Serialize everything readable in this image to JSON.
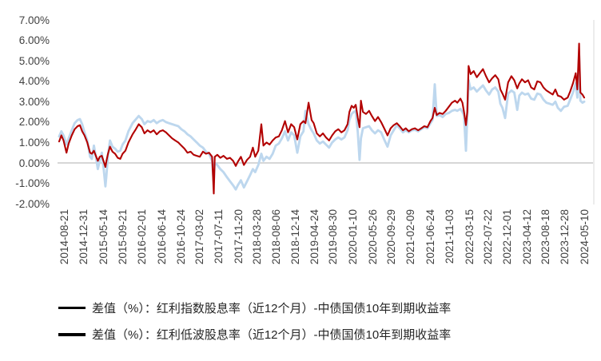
{
  "chart_data": {
    "type": "line",
    "title": "",
    "xlabel": "",
    "ylabel": "",
    "ylim": [
      -2,
      7
    ],
    "grid": "zero-line-only",
    "legend_position": "bottom-left",
    "zero_line_color": "#BFBFBF",
    "plot_border_color": "#D9D9D9",
    "axis_text_color": "#404040",
    "y_tick_labels": [
      "7.00%",
      "6.00%",
      "5.00%",
      "4.00%",
      "3.00%",
      "2.00%",
      "1.00%",
      "0.00%",
      "-1.00%",
      "-2.00%"
    ],
    "y_tick_values": [
      7,
      6,
      5,
      4,
      3,
      2,
      1,
      0,
      -1,
      -2
    ],
    "x_tick_labels": [
      "2014-08-21",
      "2014-12-31",
      "2015-05-14",
      "2015-09-21",
      "2016-02-01",
      "2016-06-14",
      "2016-10-24",
      "2017-03-02",
      "2017-07-11",
      "2017-11-20",
      "2018-03-28",
      "2018-08-06",
      "2018-12-14",
      "2019-04-24",
      "2019-08-30",
      "2020-01-10",
      "2020-05-26",
      "2020-09-29",
      "2021-02-09",
      "2021-06-24",
      "2021-11-03",
      "2022-03-15",
      "2022-07-22",
      "2022-12-01",
      "2023-04-12",
      "2023-08-18",
      "2023-12-28",
      "2024-05-10"
    ],
    "series": [
      {
        "name": "差值（%）：红利指数股息率（近12个月）-中债国债10年到期收益率",
        "color": "#B20000",
        "width": 2.1
      },
      {
        "name": "差值（%）：红利低波股息率（近12个月）-中债国债10年到期收益率",
        "color": "#BDD7EE",
        "width": 2.9
      }
    ],
    "points_format": [
      "date",
      "red_value_pct",
      "blue_value_pct"
    ],
    "points": [
      [
        "2014-08-21",
        1.05,
        1.3
      ],
      [
        "2014-09-05",
        1.35,
        1.55
      ],
      [
        "2014-09-20",
        1.1,
        1.35
      ],
      [
        "2014-10-10",
        0.5,
        0.9
      ],
      [
        "2014-10-25",
        0.95,
        1.2
      ],
      [
        "2014-11-15",
        1.35,
        1.6
      ],
      [
        "2014-12-05",
        1.65,
        1.95
      ],
      [
        "2014-12-25",
        1.8,
        2.1
      ],
      [
        "2015-01-10",
        1.85,
        2.15
      ],
      [
        "2015-01-25",
        1.55,
        1.9
      ],
      [
        "2015-02-10",
        1.35,
        1.5
      ],
      [
        "2015-03-01",
        1.0,
        1.1
      ],
      [
        "2015-03-20",
        0.5,
        0.3
      ],
      [
        "2015-04-01",
        0.45,
        0.2
      ],
      [
        "2015-04-15",
        0.6,
        0.85
      ],
      [
        "2015-05-01",
        0.3,
        0.2
      ],
      [
        "2015-05-12",
        0.1,
        -0.3
      ],
      [
        "2015-05-25",
        0.3,
        0.1
      ],
      [
        "2015-06-08",
        0.35,
        0.5
      ],
      [
        "2015-06-22",
        0.05,
        -0.35
      ],
      [
        "2015-07-03",
        -0.2,
        -1.15
      ],
      [
        "2015-07-10",
        0.1,
        -0.6
      ],
      [
        "2015-07-20",
        0.45,
        0.35
      ],
      [
        "2015-08-03",
        0.8,
        1.1
      ],
      [
        "2015-08-20",
        0.55,
        0.8
      ],
      [
        "2015-09-07",
        0.45,
        0.7
      ],
      [
        "2015-09-25",
        0.25,
        0.55
      ],
      [
        "2015-10-12",
        0.2,
        0.6
      ],
      [
        "2015-10-28",
        0.45,
        0.9
      ],
      [
        "2015-11-16",
        0.6,
        1.1
      ],
      [
        "2015-12-07",
        1.0,
        1.55
      ],
      [
        "2016-01-04",
        1.4,
        1.95
      ],
      [
        "2016-01-22",
        1.6,
        2.1
      ],
      [
        "2016-02-15",
        1.9,
        2.3
      ],
      [
        "2016-03-07",
        1.75,
        2.15
      ],
      [
        "2016-03-25",
        1.45,
        1.9
      ],
      [
        "2016-04-15",
        1.6,
        2.05
      ],
      [
        "2016-05-06",
        1.5,
        2.0
      ],
      [
        "2016-05-27",
        1.6,
        2.1
      ],
      [
        "2016-06-17",
        1.4,
        1.95
      ],
      [
        "2016-07-08",
        1.55,
        2.05
      ],
      [
        "2016-07-29",
        1.6,
        2.1
      ],
      [
        "2016-08-19",
        1.5,
        2.0
      ],
      [
        "2016-09-09",
        1.35,
        1.95
      ],
      [
        "2016-09-30",
        1.2,
        1.9
      ],
      [
        "2016-10-21",
        1.1,
        1.85
      ],
      [
        "2016-11-11",
        1.0,
        1.8
      ],
      [
        "2016-12-02",
        0.85,
        1.65
      ],
      [
        "2016-12-23",
        0.7,
        1.55
      ],
      [
        "2017-01-13",
        0.5,
        1.4
      ],
      [
        "2017-02-03",
        0.55,
        1.3
      ],
      [
        "2017-02-24",
        0.4,
        1.15
      ],
      [
        "2017-03-17",
        0.35,
        1.0
      ],
      [
        "2017-04-07",
        0.3,
        0.85
      ],
      [
        "2017-04-28",
        0.55,
        0.75
      ],
      [
        "2017-05-19",
        0.45,
        0.55
      ],
      [
        "2017-06-09",
        0.5,
        0.45
      ],
      [
        "2017-06-30",
        0.3,
        0.1
      ],
      [
        "2017-07-11",
        -1.5,
        -0.95
      ],
      [
        "2017-07-18",
        0.3,
        0.0
      ],
      [
        "2017-08-04",
        0.4,
        -0.1
      ],
      [
        "2017-08-25",
        0.25,
        -0.3
      ],
      [
        "2017-09-15",
        0.35,
        -0.45
      ],
      [
        "2017-10-09",
        0.2,
        -0.7
      ],
      [
        "2017-10-30",
        0.25,
        -0.9
      ],
      [
        "2017-11-20",
        0.1,
        -1.1
      ],
      [
        "2017-12-08",
        -0.15,
        -1.3
      ],
      [
        "2017-12-22",
        0.05,
        -1.1
      ],
      [
        "2018-01-12",
        0.3,
        -0.85
      ],
      [
        "2018-02-02",
        -0.1,
        -1.2
      ],
      [
        "2018-02-23",
        0.15,
        -0.9
      ],
      [
        "2018-03-16",
        0.3,
        -0.6
      ],
      [
        "2018-04-04",
        0.75,
        -0.3
      ],
      [
        "2018-04-20",
        0.3,
        -0.45
      ],
      [
        "2018-05-11",
        0.6,
        -0.1
      ],
      [
        "2018-06-01",
        1.9,
        0.45
      ],
      [
        "2018-06-15",
        0.85,
        0.1
      ],
      [
        "2018-07-06",
        1.0,
        0.3
      ],
      [
        "2018-07-27",
        0.9,
        0.2
      ],
      [
        "2018-08-17",
        1.1,
        0.45
      ],
      [
        "2018-09-07",
        1.25,
        0.85
      ],
      [
        "2018-09-28",
        1.3,
        0.95
      ],
      [
        "2018-10-19",
        1.6,
        1.2
      ],
      [
        "2018-11-09",
        2.05,
        1.55
      ],
      [
        "2018-11-30",
        1.5,
        1.1
      ],
      [
        "2018-12-21",
        1.9,
        1.5
      ],
      [
        "2019-01-11",
        1.75,
        1.35
      ],
      [
        "2019-02-01",
        1.15,
        0.5
      ],
      [
        "2019-02-22",
        1.9,
        1.3
      ],
      [
        "2019-03-15",
        2.05,
        1.55
      ],
      [
        "2019-03-29",
        1.95,
        2.55
      ],
      [
        "2019-04-19",
        2.95,
        1.9
      ],
      [
        "2019-05-10",
        2.1,
        1.6
      ],
      [
        "2019-05-24",
        1.95,
        1.45
      ],
      [
        "2019-06-14",
        1.45,
        1.1
      ],
      [
        "2019-07-05",
        1.3,
        0.95
      ],
      [
        "2019-07-26",
        1.45,
        1.05
      ],
      [
        "2019-08-16",
        1.25,
        0.9
      ],
      [
        "2019-09-06",
        1.1,
        0.75
      ],
      [
        "2019-09-27",
        1.35,
        1.0
      ],
      [
        "2019-10-18",
        1.55,
        1.15
      ],
      [
        "2019-11-08",
        1.65,
        1.25
      ],
      [
        "2019-11-29",
        1.5,
        1.15
      ],
      [
        "2019-12-20",
        1.6,
        1.25
      ],
      [
        "2020-01-10",
        1.9,
        1.6
      ],
      [
        "2020-01-23",
        2.5,
        2.1
      ],
      [
        "2020-02-07",
        2.8,
        2.4
      ],
      [
        "2020-02-21",
        2.7,
        2.5
      ],
      [
        "2020-03-06",
        2.85,
        2.55
      ],
      [
        "2020-03-20",
        2.2,
        1.5
      ],
      [
        "2020-04-01",
        1.75,
        0.15
      ],
      [
        "2020-04-10",
        3.05,
        1.2
      ],
      [
        "2020-04-24",
        2.5,
        1.7
      ],
      [
        "2020-05-15",
        2.4,
        1.75
      ],
      [
        "2020-06-05",
        2.55,
        1.8
      ],
      [
        "2020-06-24",
        2.3,
        1.6
      ],
      [
        "2020-07-15",
        2.05,
        1.45
      ],
      [
        "2020-08-05",
        2.25,
        1.6
      ],
      [
        "2020-08-26",
        2.0,
        1.5
      ],
      [
        "2020-09-16",
        1.7,
        1.15
      ],
      [
        "2020-10-09",
        1.35,
        0.8
      ],
      [
        "2020-10-30",
        1.7,
        1.35
      ],
      [
        "2020-11-20",
        1.85,
        1.6
      ],
      [
        "2020-12-11",
        1.95,
        1.85
      ],
      [
        "2020-12-31",
        1.8,
        1.7
      ],
      [
        "2021-01-22",
        1.6,
        1.5
      ],
      [
        "2021-02-10",
        1.7,
        1.6
      ],
      [
        "2021-03-03",
        1.55,
        1.5
      ],
      [
        "2021-03-24",
        1.65,
        1.6
      ],
      [
        "2021-04-14",
        1.7,
        1.62
      ],
      [
        "2021-05-06",
        1.6,
        1.55
      ],
      [
        "2021-05-27",
        1.7,
        1.65
      ],
      [
        "2021-06-17",
        1.8,
        1.75
      ],
      [
        "2021-07-08",
        1.75,
        1.7
      ],
      [
        "2021-07-29",
        2.05,
        1.95
      ],
      [
        "2021-08-12",
        2.2,
        2.1
      ],
      [
        "2021-08-27",
        2.7,
        3.85
      ],
      [
        "2021-09-09",
        2.35,
        2.3
      ],
      [
        "2021-09-29",
        2.45,
        2.35
      ],
      [
        "2021-10-20",
        2.4,
        2.25
      ],
      [
        "2021-11-10",
        2.55,
        2.4
      ],
      [
        "2021-12-01",
        2.75,
        2.45
      ],
      [
        "2021-12-22",
        2.95,
        2.55
      ],
      [
        "2022-01-12",
        3.05,
        2.6
      ],
      [
        "2022-01-28",
        2.95,
        2.55
      ],
      [
        "2022-02-18",
        3.15,
        2.65
      ],
      [
        "2022-03-04",
        2.95,
        2.5
      ],
      [
        "2022-03-15",
        2.5,
        2.3
      ],
      [
        "2022-03-28",
        1.85,
        0.6
      ],
      [
        "2022-04-06",
        2.5,
        2.3
      ],
      [
        "2022-04-15",
        4.75,
        4.05
      ],
      [
        "2022-04-29",
        4.35,
        3.6
      ],
      [
        "2022-05-20",
        4.5,
        3.7
      ],
      [
        "2022-06-10",
        4.2,
        3.5
      ],
      [
        "2022-07-01",
        4.4,
        3.65
      ],
      [
        "2022-07-22",
        4.6,
        3.8
      ],
      [
        "2022-08-12",
        4.25,
        3.55
      ],
      [
        "2022-09-02",
        3.95,
        3.35
      ],
      [
        "2022-09-23",
        4.15,
        3.6
      ],
      [
        "2022-10-14",
        4.3,
        3.7
      ],
      [
        "2022-11-04",
        4.1,
        3.5
      ],
      [
        "2022-11-18",
        3.6,
        2.9
      ],
      [
        "2022-12-02",
        3.4,
        2.7
      ],
      [
        "2022-12-20",
        3.1,
        2.2
      ],
      [
        "2023-01-10",
        3.95,
        3.4
      ],
      [
        "2023-02-01",
        4.25,
        3.55
      ],
      [
        "2023-02-21",
        4.05,
        3.45
      ],
      [
        "2023-03-13",
        3.65,
        2.6
      ],
      [
        "2023-03-27",
        3.9,
        3.3
      ],
      [
        "2023-04-14",
        4.1,
        3.45
      ],
      [
        "2023-05-05",
        3.95,
        3.35
      ],
      [
        "2023-05-26",
        4.05,
        3.4
      ],
      [
        "2023-06-16",
        3.7,
        3.15
      ],
      [
        "2023-07-07",
        3.6,
        3.1
      ],
      [
        "2023-07-28",
        4.0,
        3.4
      ],
      [
        "2023-08-18",
        3.95,
        3.35
      ],
      [
        "2023-09-08",
        3.7,
        3.1
      ],
      [
        "2023-09-28",
        3.55,
        2.95
      ],
      [
        "2023-10-20",
        3.45,
        2.9
      ],
      [
        "2023-11-10",
        3.35,
        2.85
      ],
      [
        "2023-11-28",
        3.6,
        3.0
      ],
      [
        "2023-12-15",
        3.3,
        2.7
      ],
      [
        "2024-01-05",
        3.25,
        2.55
      ],
      [
        "2024-01-26",
        3.1,
        2.75
      ],
      [
        "2024-02-20",
        3.2,
        2.8
      ],
      [
        "2024-03-08",
        3.5,
        3.1
      ],
      [
        "2024-03-27",
        3.9,
        3.45
      ],
      [
        "2024-04-15",
        4.4,
        3.9
      ],
      [
        "2024-04-26",
        3.6,
        3.2
      ],
      [
        "2024-05-08",
        5.85,
        5.25
      ],
      [
        "2024-05-17",
        3.45,
        3.05
      ],
      [
        "2024-05-31",
        3.35,
        2.95
      ],
      [
        "2024-06-12",
        3.2,
        3.0
      ]
    ]
  }
}
